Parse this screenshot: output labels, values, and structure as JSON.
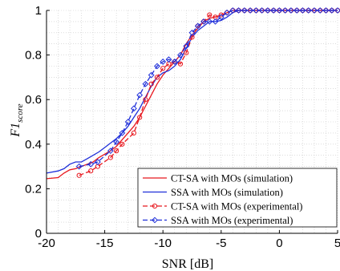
{
  "chart_data": {
    "type": "line",
    "xlabel": "SNR [dB]",
    "ylabel_main": "F1",
    "ylabel_sub": "score",
    "xlim": [
      -20,
      5
    ],
    "ylim": [
      0,
      1
    ],
    "x_ticks": [
      -20,
      -15,
      -10,
      -5,
      0,
      5
    ],
    "y_ticks": [
      0,
      0.2,
      0.4,
      0.6,
      0.8,
      1
    ],
    "x_tick_labels": [
      "-20",
      "-15",
      "-10",
      "-5",
      "0",
      "5"
    ],
    "y_tick_labels": [
      "0",
      "0.2",
      "0.4",
      "0.6",
      "0.8",
      "1"
    ],
    "grid": "minor dotted",
    "legend_position": "bottom-right",
    "series": [
      {
        "name": "CT-SA with MOs (simulation)",
        "color": "#e8171e",
        "style": "solid",
        "marker": "none",
        "x": [
          -20,
          -19,
          -18.5,
          -18,
          -17.5,
          -17,
          -16.5,
          -16,
          -15.5,
          -15,
          -14.5,
          -14,
          -13.5,
          -13,
          -12.5,
          -12,
          -11.5,
          -11,
          -10.5,
          -10,
          -9.5,
          -9,
          -8.5,
          -8,
          -7.5,
          -7,
          -6.5,
          -6,
          -5.5,
          -5,
          -4.5,
          -4,
          -3.5,
          -3,
          0,
          5
        ],
        "y": [
          0.245,
          0.25,
          0.27,
          0.285,
          0.29,
          0.3,
          0.31,
          0.32,
          0.34,
          0.355,
          0.37,
          0.39,
          0.42,
          0.45,
          0.48,
          0.52,
          0.57,
          0.62,
          0.67,
          0.71,
          0.74,
          0.77,
          0.8,
          0.85,
          0.89,
          0.92,
          0.95,
          0.965,
          0.97,
          0.98,
          0.99,
          1.0,
          1.0,
          1.0,
          1.0,
          1.0
        ]
      },
      {
        "name": "SSA with MOs (simulation)",
        "color": "#1f2fd9",
        "style": "solid",
        "marker": "none",
        "x": [
          -20,
          -19,
          -18.5,
          -18,
          -17.5,
          -17,
          -16.5,
          -16,
          -15.5,
          -15,
          -14.5,
          -14,
          -13.5,
          -13,
          -12.5,
          -12,
          -11.5,
          -11,
          -10.5,
          -10,
          -9.5,
          -9,
          -8.5,
          -8,
          -7.5,
          -7,
          -6.5,
          -6,
          -5.5,
          -5,
          -4.5,
          -4,
          -3.5,
          -3,
          0,
          5
        ],
        "y": [
          0.27,
          0.28,
          0.29,
          0.31,
          0.32,
          0.32,
          0.335,
          0.35,
          0.365,
          0.385,
          0.405,
          0.425,
          0.45,
          0.48,
          0.52,
          0.56,
          0.61,
          0.66,
          0.7,
          0.72,
          0.73,
          0.75,
          0.78,
          0.83,
          0.88,
          0.91,
          0.93,
          0.95,
          0.95,
          0.955,
          0.97,
          0.99,
          1.0,
          1.0,
          1.0,
          1.0
        ]
      },
      {
        "name": "CT-SA with MOs (experimental)",
        "color": "#e8171e",
        "style": "dashed",
        "marker": "circle",
        "x": [
          -17.2,
          -16.2,
          -15.6,
          -14.5,
          -14,
          -13.5,
          -12.5,
          -12,
          -11.5,
          -11,
          -10.5,
          -10,
          -9.5,
          -9,
          -8.5,
          -8,
          -7.5,
          -7,
          -6.5,
          -6,
          -5.5,
          -5,
          -4.5,
          -4,
          -3.5,
          -3,
          -2.5,
          -2,
          -1.5,
          -1,
          -0.5,
          0,
          0.5,
          1,
          1.5,
          2,
          2.5,
          3,
          3.5,
          4,
          4.5,
          5
        ],
        "y": [
          0.26,
          0.28,
          0.3,
          0.34,
          0.37,
          0.4,
          0.45,
          0.52,
          0.6,
          0.67,
          0.7,
          0.74,
          0.76,
          0.77,
          0.76,
          0.81,
          0.88,
          0.93,
          0.95,
          0.98,
          0.97,
          0.98,
          0.99,
          1.0,
          1.0,
          1.0,
          1.0,
          1.0,
          1.0,
          1.0,
          1.0,
          1.0,
          1.0,
          1.0,
          1.0,
          1.0,
          1.0,
          1.0,
          1.0,
          1.0,
          1.0,
          1.0
        ]
      },
      {
        "name": "SSA with MOs (experimental)",
        "color": "#1f2fd9",
        "style": "dashed",
        "marker": "diamond",
        "x": [
          -17.2,
          -16.2,
          -15.6,
          -14.5,
          -14,
          -13.5,
          -13,
          -12.5,
          -12,
          -11.5,
          -11,
          -10.5,
          -10,
          -9.5,
          -9,
          -8.5,
          -8,
          -7.5,
          -7,
          -6.5,
          -6,
          -5.5,
          -5,
          -4.5,
          -4,
          -3.5,
          -3,
          -2.5,
          -2,
          -1.5,
          -1,
          -0.5,
          0,
          0.5,
          1,
          1.5,
          2,
          2.5,
          3,
          3.5,
          4,
          4.5,
          5
        ],
        "y": [
          0.3,
          0.31,
          0.32,
          0.37,
          0.41,
          0.45,
          0.5,
          0.56,
          0.62,
          0.67,
          0.71,
          0.75,
          0.77,
          0.78,
          0.77,
          0.8,
          0.84,
          0.9,
          0.93,
          0.95,
          0.95,
          0.95,
          0.97,
          0.99,
          1.0,
          1.0,
          1.0,
          1.0,
          1.0,
          1.0,
          1.0,
          1.0,
          1.0,
          1.0,
          1.0,
          1.0,
          1.0,
          1.0,
          1.0,
          1.0,
          1.0,
          1.0,
          1.0
        ]
      }
    ]
  }
}
